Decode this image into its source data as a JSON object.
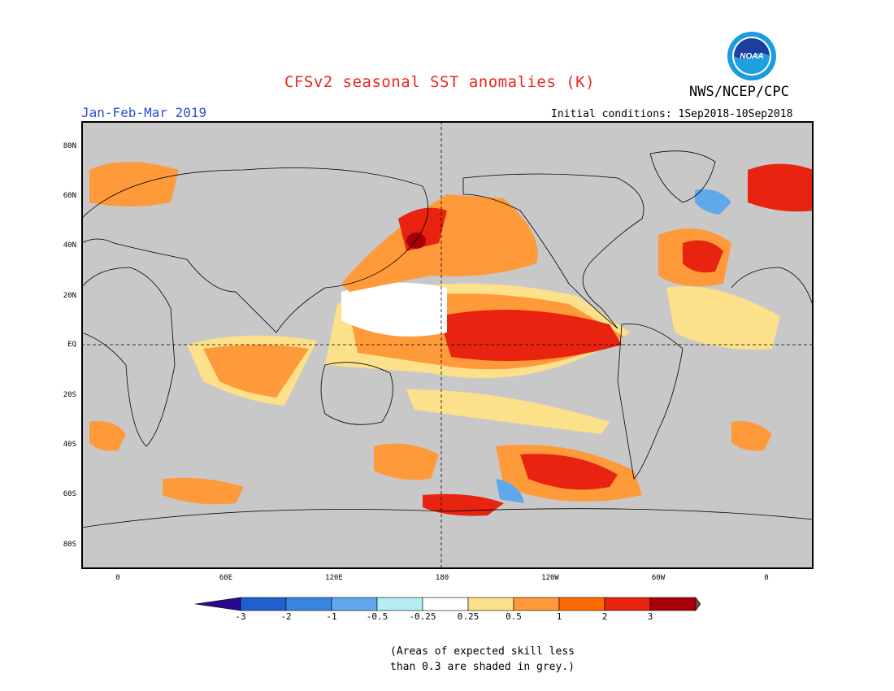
{
  "header": {
    "title": "CFSv2 seasonal SST anomalies (K)",
    "agency": "NWS/NCEP/CPC",
    "period": "Jan-Feb-Mar 2019",
    "initial_conditions": "Initial conditions: 1Sep2018-10Sep2018",
    "logo_text": "NOAA"
  },
  "map": {
    "land_color": "#c8c8c8",
    "lat_labels": [
      "80N",
      "60N",
      "40N",
      "20N",
      "EQ",
      "20S",
      "40S",
      "60S",
      "80S"
    ],
    "lon_labels": [
      "0",
      "60E",
      "120E",
      "180",
      "120W",
      "60W",
      "0"
    ]
  },
  "colorbar": {
    "ticks": [
      "-3",
      "-2",
      "-1",
      "-0.5",
      "-0.25",
      "0.25",
      "0.5",
      "1",
      "2",
      "3"
    ],
    "colors": [
      "#2a0a8c",
      "#1f5fcf",
      "#3a86e0",
      "#5fa8ec",
      "#b5eef0",
      "#ffffff",
      "#fde08a",
      "#ff9a3a",
      "#ff6a00",
      "#e8230f",
      "#a8000a",
      "#7b4a3a"
    ]
  },
  "footnote": {
    "line1": "(Areas of expected skill less",
    "line2": "than 0.3 are shaded in grey.)"
  }
}
